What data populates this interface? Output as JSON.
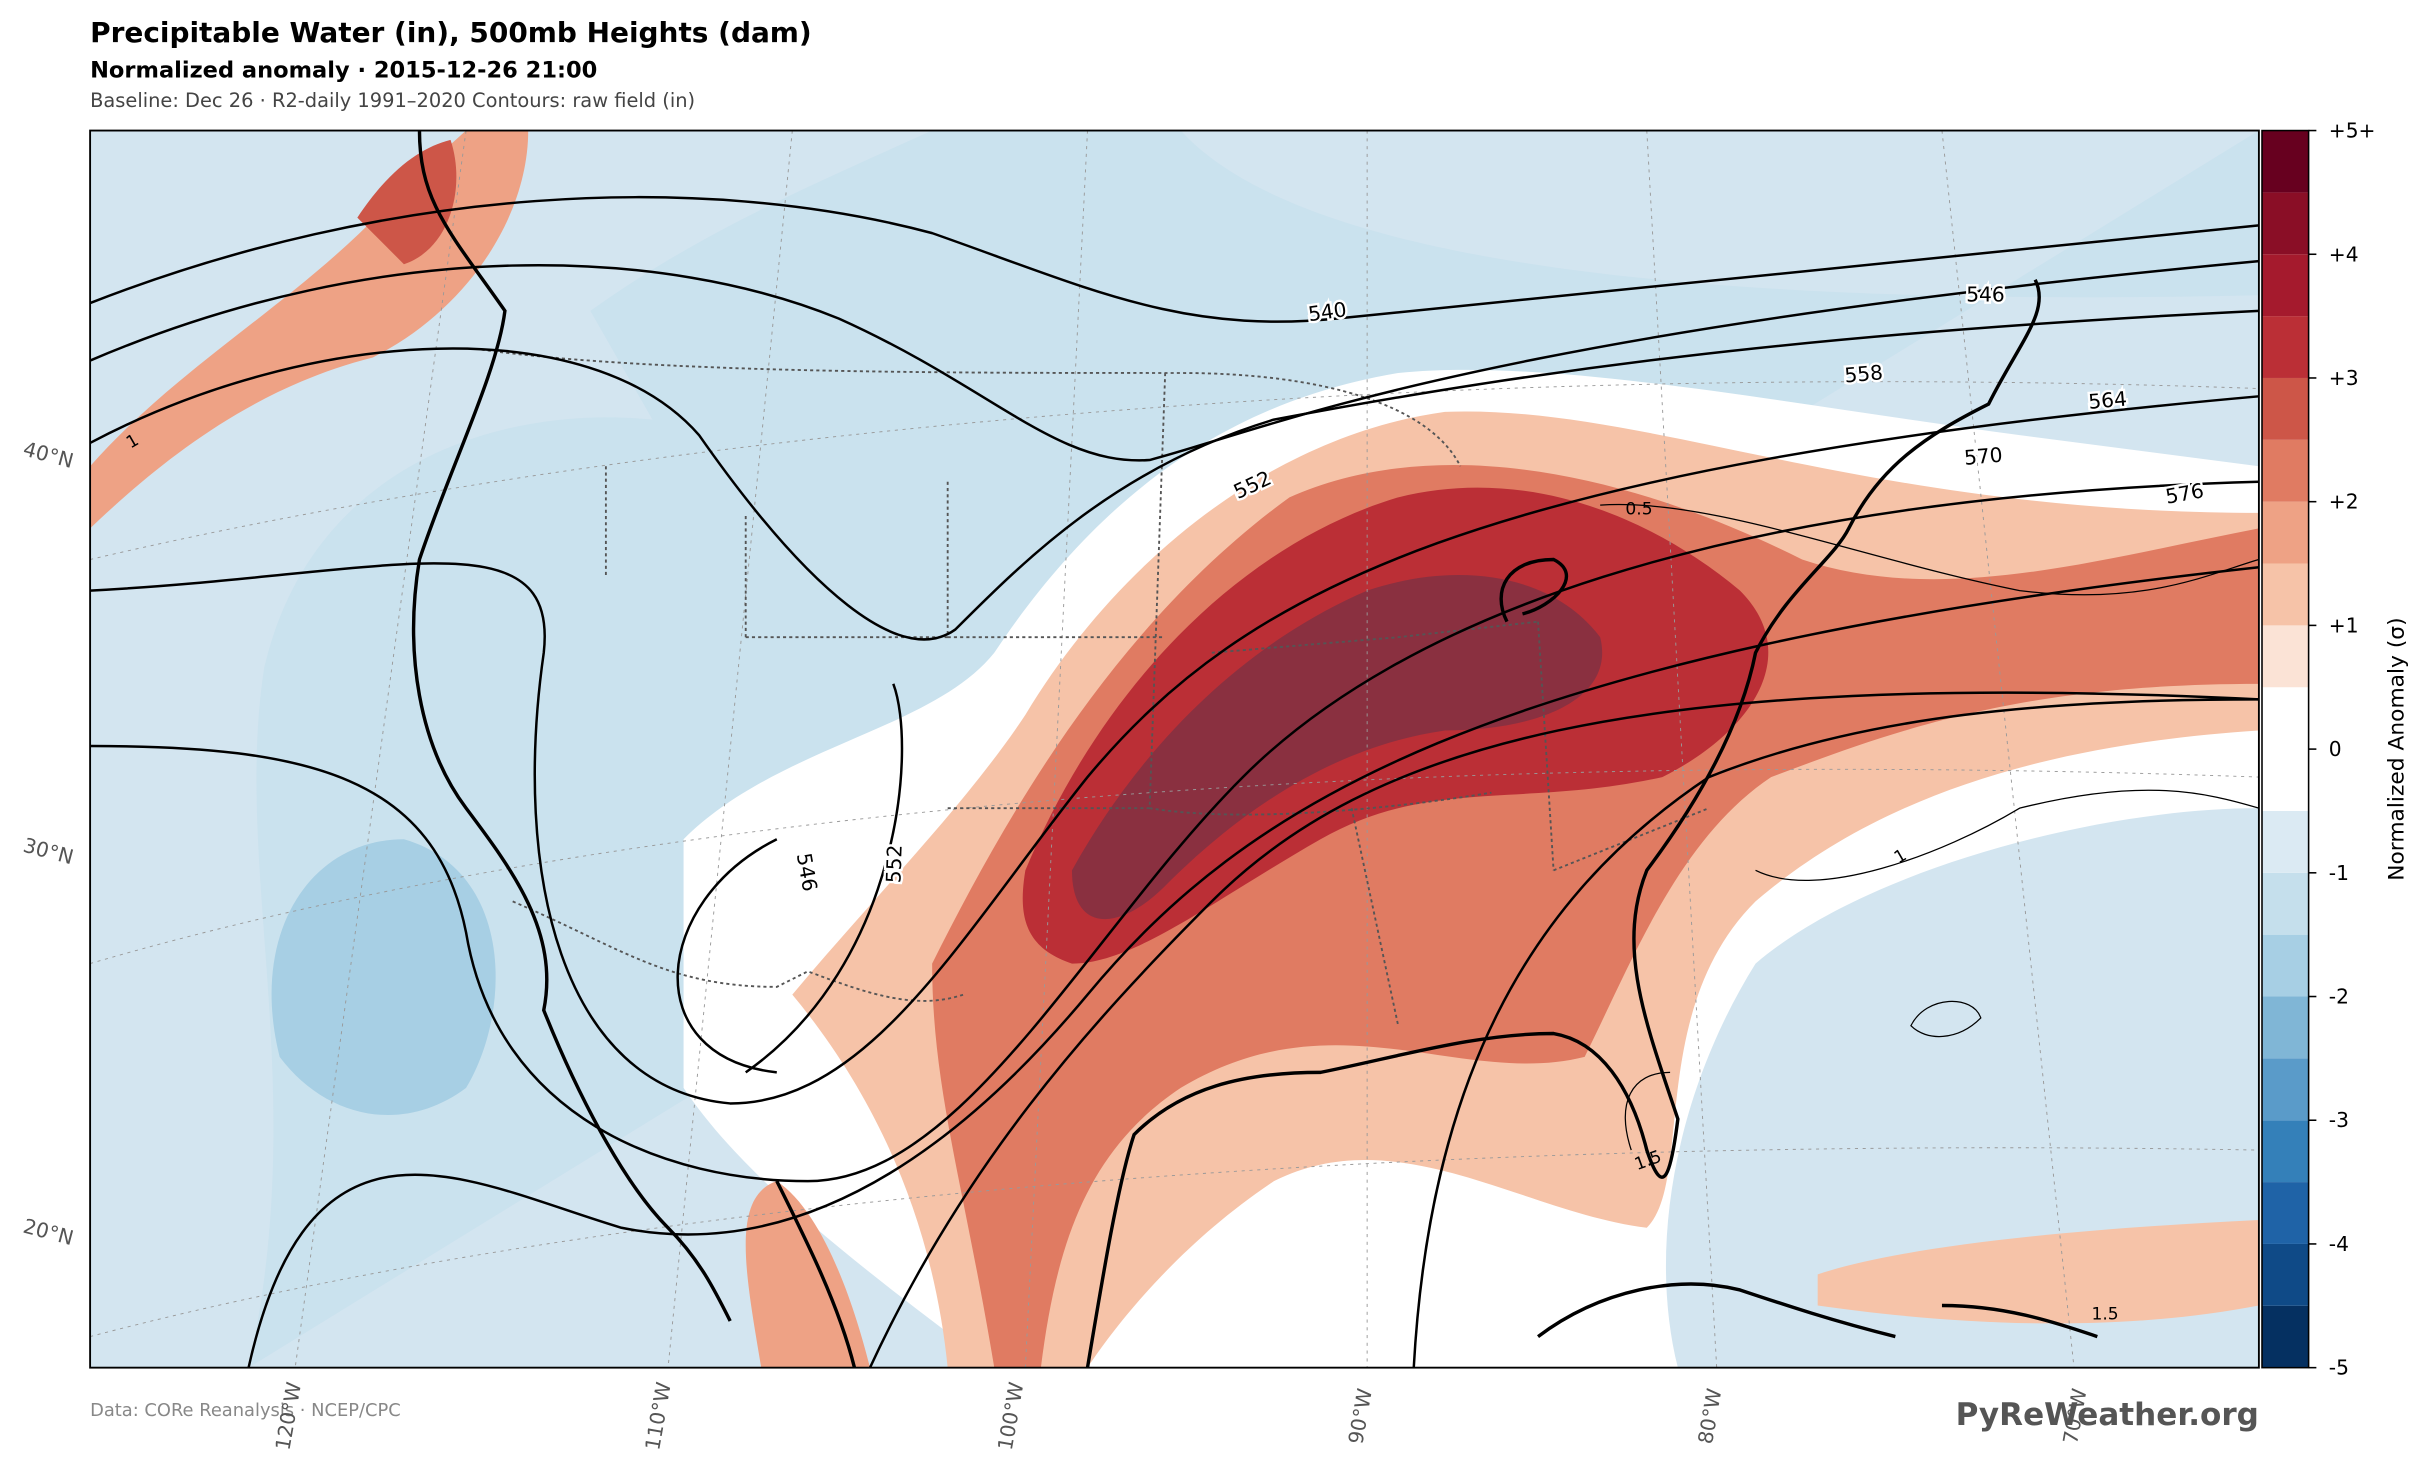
{
  "header": {
    "title": "Precipitable Water (in), 500mb Heights (dam)",
    "subtitle": "Normalized anomaly · 2015-12-26 21:00",
    "baseline": "Baseline: Dec 26 · R2-daily 1991–2020  Contours: raw field (in)"
  },
  "map": {
    "lat_labels": [
      "40°N",
      "30°N",
      "20°N"
    ],
    "lon_labels": [
      "120°W",
      "110°W",
      "100°W",
      "90°W",
      "80°W",
      "70°W"
    ],
    "height_contour_labels": [
      "540",
      "546",
      "552",
      "558",
      "564",
      "570",
      "576",
      "546",
      "552"
    ],
    "pw_contour_labels": [
      "0.5",
      "1",
      "1.5",
      "1.5",
      "1"
    ]
  },
  "colorbar": {
    "label": "Normalized Anomaly  (σ)",
    "ticks": [
      {
        "value": 5,
        "label": "+5+"
      },
      {
        "value": 4,
        "label": "+4"
      },
      {
        "value": 3,
        "label": "+3"
      },
      {
        "value": 2,
        "label": "+2"
      },
      {
        "value": 1,
        "label": "+1"
      },
      0,
      -1,
      -2,
      -3,
      -4,
      -5
    ],
    "bounds": [
      -5,
      -4.5,
      -4,
      -3.5,
      -3,
      -2.5,
      -2,
      -1.5,
      -1,
      -0.5,
      0.5,
      1,
      1.5,
      2,
      2.5,
      3,
      3.5,
      4,
      4.5,
      5
    ],
    "colors": [
      "#053061",
      "#0f4a87",
      "#1f63a7",
      "#3480b9",
      "#5a9bc9",
      "#80b6d6",
      "#a7cfe4",
      "#c5dfec",
      "#dbeaf3",
      "#ffffff",
      "#fbe3d6",
      "#f6c3a8",
      "#eea285",
      "#e07b62",
      "#cd5648",
      "#bb2f36",
      "#a51a2d",
      "#8a0e26",
      "#67001f"
    ]
  },
  "footer": {
    "source": "Data: CORe Reanalysis · NCEP/CPC",
    "brand": "PyReWeather.org"
  }
}
